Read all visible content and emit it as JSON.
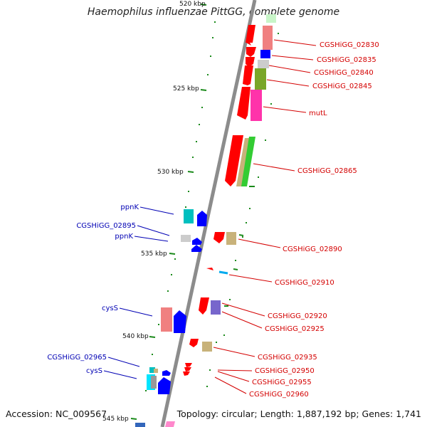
{
  "title": "Haemophilus influenzae PittGG, complete genome",
  "footer": {
    "accession": "Accession: NC_009567",
    "summary": "Topology: circular; Length: 1,887,192 bp; Genes: 1,741"
  },
  "scale_labels": [
    "520 kbp",
    "525 kbp",
    "530 kbp",
    "535 kbp",
    "540 kbp",
    "545 kbp"
  ],
  "gene_labels_right": [
    "CGSHiGG_02830",
    "CGSHiGG_02835",
    "CGSHiGG_02840",
    "CGSHiGG_02845",
    "mutL",
    "CGSHiGG_02865",
    "CGSHiGG_02890",
    "CGSHiGG_02910",
    "CGSHiGG_02920",
    "CGSHiGG_02925",
    "CGSHiGG_02935",
    "CGSHiGG_02950",
    "CGSHiGG_02955",
    "CGSHiGG_02960"
  ],
  "gene_labels_left": [
    "ppnK",
    "CGSHiGG_02895",
    "ppnK",
    "cysS",
    "CGSHiGG_02965",
    "cysS"
  ],
  "colors": {
    "backbone": "#8c8c8c",
    "label_right": "#d40000",
    "label_left": "#0000b4",
    "tick": "#1a8a1a",
    "forward_cds": "#ff0000",
    "reverse_cds": "#0000ff"
  }
}
